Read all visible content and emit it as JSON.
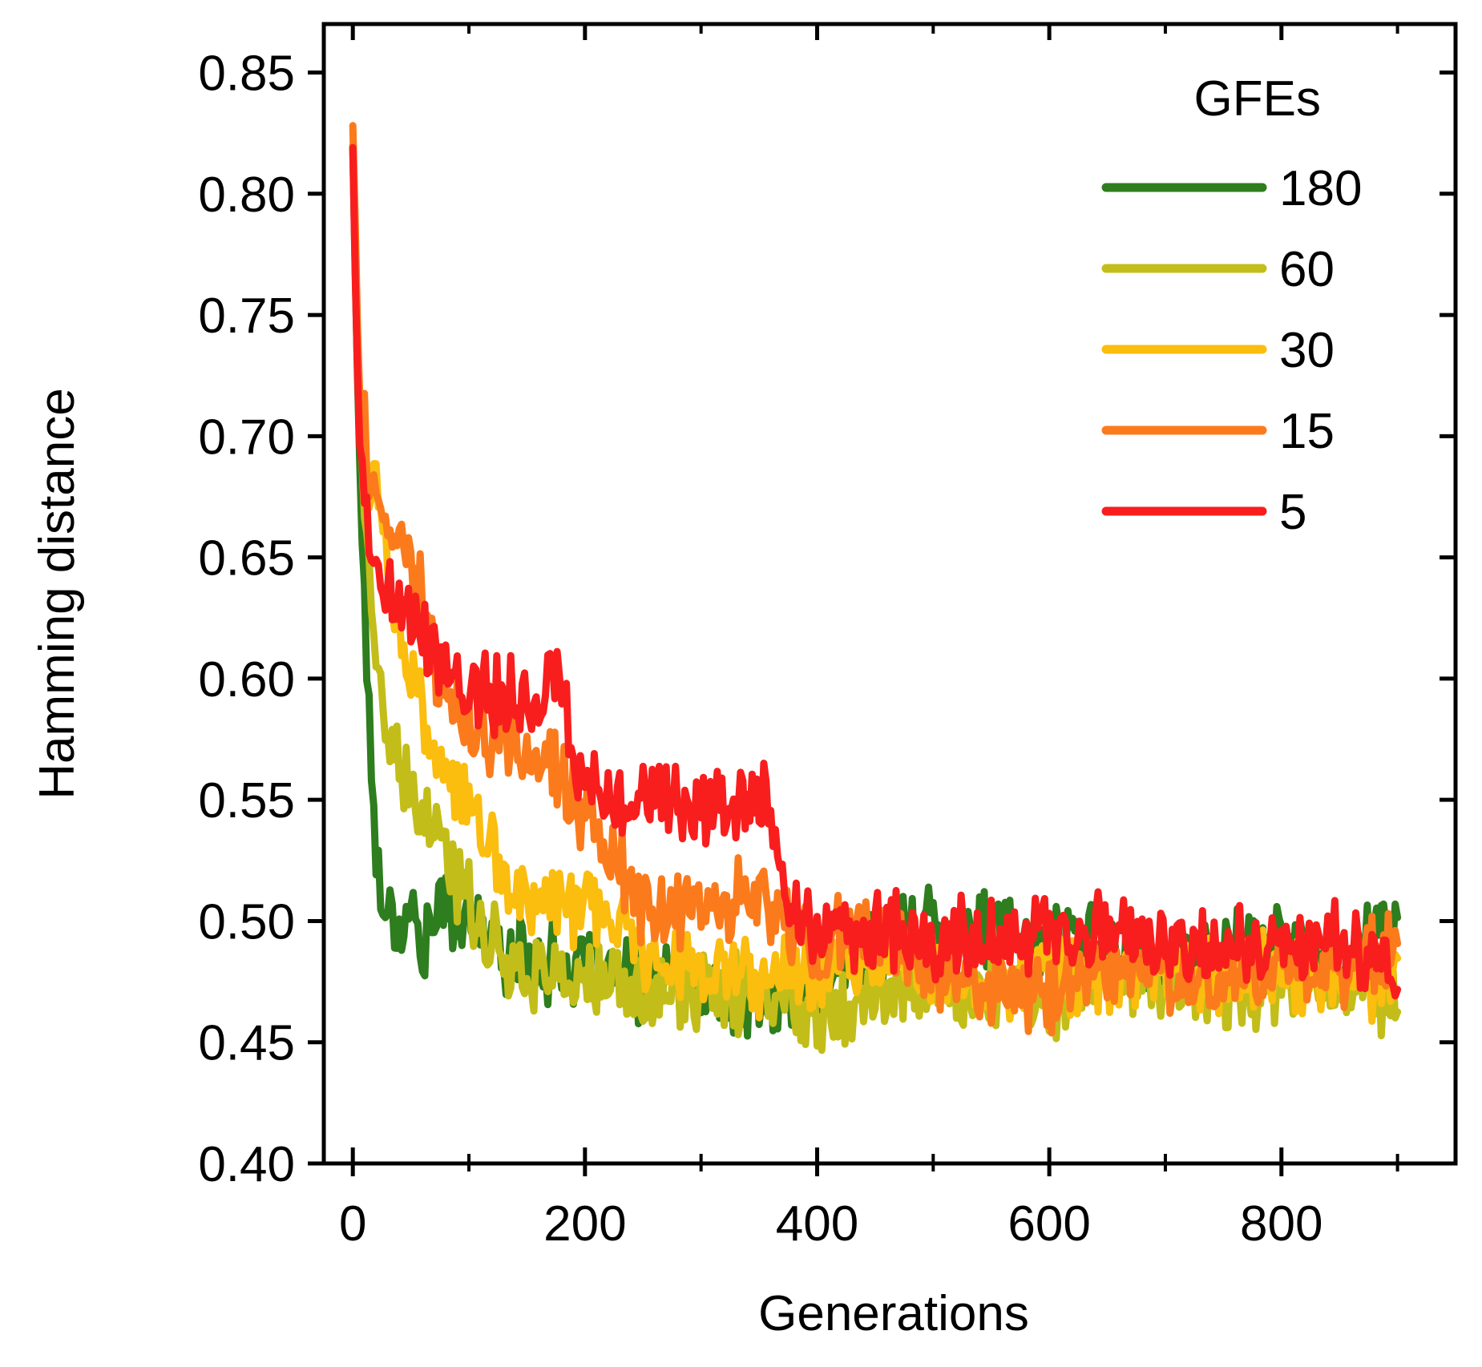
{
  "chart_data": {
    "type": "line",
    "title": "",
    "xlabel": "Generations",
    "ylabel": "Hamming distance",
    "xlim": [
      -25,
      950
    ],
    "ylim": [
      0.4,
      0.87
    ],
    "x_ticks": [
      0,
      200,
      400,
      600,
      800
    ],
    "x_tick_labels": [
      "0",
      "200",
      "400",
      "600",
      "800"
    ],
    "y_ticks": [
      0.4,
      0.45,
      0.5,
      0.55,
      0.6,
      0.65,
      0.7,
      0.75,
      0.8,
      0.85
    ],
    "y_tick_labels": [
      "0.40",
      "0.45",
      "0.50",
      "0.55",
      "0.60",
      "0.65",
      "0.70",
      "0.75",
      "0.80",
      "0.85"
    ],
    "grid": false,
    "legend": {
      "title": "GFEs",
      "placement": "top-right"
    },
    "series": [
      {
        "name": "180",
        "color": "#2e7d1e",
        "x": [
          0,
          5,
          10,
          15,
          20,
          25,
          30,
          40,
          50,
          60,
          70,
          80,
          100,
          120,
          150,
          200,
          250,
          300,
          350,
          400,
          450,
          500,
          550,
          600,
          650,
          700,
          750,
          800,
          850,
          900
        ],
        "y": [
          0.82,
          0.7,
          0.64,
          0.57,
          0.53,
          0.51,
          0.505,
          0.5,
          0.505,
          0.49,
          0.5,
          0.505,
          0.5,
          0.49,
          0.485,
          0.48,
          0.475,
          0.47,
          0.465,
          0.47,
          0.49,
          0.5,
          0.495,
          0.49,
          0.49,
          0.48,
          0.49,
          0.49,
          0.485,
          0.5
        ]
      },
      {
        "name": "60",
        "color": "#c3bd1a",
        "x": [
          0,
          5,
          10,
          15,
          20,
          25,
          30,
          40,
          50,
          60,
          70,
          80,
          100,
          120,
          150,
          200,
          250,
          300,
          350,
          400,
          450,
          500,
          550,
          600,
          650,
          700,
          750,
          800,
          850,
          900
        ],
        "y": [
          0.82,
          0.72,
          0.67,
          0.63,
          0.61,
          0.59,
          0.575,
          0.56,
          0.55,
          0.545,
          0.535,
          0.525,
          0.51,
          0.49,
          0.48,
          0.475,
          0.47,
          0.47,
          0.47,
          0.465,
          0.47,
          0.475,
          0.47,
          0.47,
          0.475,
          0.475,
          0.47,
          0.475,
          0.475,
          0.47
        ]
      },
      {
        "name": "30",
        "color": "#fbbd0e",
        "x": [
          0,
          5,
          10,
          15,
          20,
          25,
          30,
          40,
          50,
          60,
          70,
          80,
          100,
          120,
          150,
          200,
          250,
          300,
          350,
          400,
          450,
          500,
          550,
          600,
          650,
          700,
          750,
          800,
          850,
          900
        ],
        "y": [
          0.82,
          0.72,
          0.69,
          0.68,
          0.675,
          0.67,
          0.65,
          0.62,
          0.6,
          0.585,
          0.57,
          0.555,
          0.55,
          0.525,
          0.51,
          0.505,
          0.49,
          0.48,
          0.475,
          0.48,
          0.49,
          0.48,
          0.475,
          0.48,
          0.475,
          0.48,
          0.475,
          0.48,
          0.475,
          0.475
        ]
      },
      {
        "name": "15",
        "color": "#fb7b1c",
        "x": [
          0,
          5,
          10,
          15,
          20,
          25,
          30,
          40,
          50,
          60,
          70,
          80,
          100,
          120,
          150,
          180,
          200,
          250,
          300,
          350,
          370,
          400,
          450,
          500,
          550,
          600,
          650,
          700,
          750,
          800,
          850,
          900
        ],
        "y": [
          0.83,
          0.72,
          0.7,
          0.68,
          0.67,
          0.665,
          0.66,
          0.655,
          0.65,
          0.635,
          0.61,
          0.585,
          0.58,
          0.575,
          0.57,
          0.56,
          0.545,
          0.505,
          0.505,
          0.51,
          0.5,
          0.49,
          0.495,
          0.48,
          0.47,
          0.47,
          0.48,
          0.48,
          0.475,
          0.48,
          0.48,
          0.49
        ]
      },
      {
        "name": "5",
        "color": "#f91e1e",
        "x": [
          0,
          5,
          10,
          15,
          20,
          25,
          30,
          40,
          50,
          60,
          70,
          80,
          100,
          120,
          150,
          170,
          180,
          190,
          200,
          250,
          300,
          350,
          360,
          380,
          400,
          450,
          500,
          550,
          600,
          650,
          700,
          750,
          800,
          850,
          900
        ],
        "y": [
          0.82,
          0.7,
          0.67,
          0.655,
          0.65,
          0.64,
          0.635,
          0.635,
          0.63,
          0.615,
          0.61,
          0.605,
          0.6,
          0.595,
          0.59,
          0.6,
          0.6,
          0.56,
          0.555,
          0.55,
          0.55,
          0.55,
          0.545,
          0.5,
          0.495,
          0.495,
          0.49,
          0.495,
          0.49,
          0.495,
          0.49,
          0.49,
          0.49,
          0.49,
          0.48
        ]
      }
    ]
  }
}
